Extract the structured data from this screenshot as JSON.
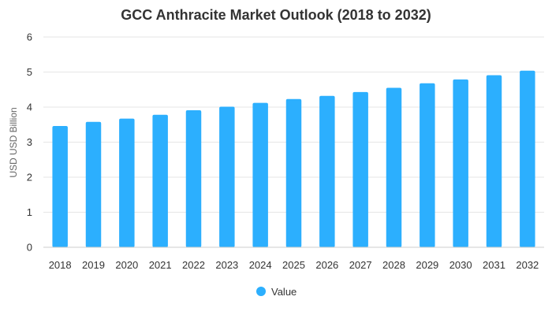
{
  "chart_data": {
    "type": "bar",
    "title": "GCC Anthracite Market Outlook (2018 to 2032)",
    "xlabel": "",
    "ylabel": "USD USD Billion",
    "ylim": [
      0,
      6
    ],
    "yticks": [
      0,
      1,
      2,
      3,
      4,
      5,
      6
    ],
    "categories": [
      "2018",
      "2019",
      "2020",
      "2021",
      "2022",
      "2023",
      "2024",
      "2025",
      "2026",
      "2027",
      "2028",
      "2029",
      "2030",
      "2031",
      "2032"
    ],
    "series": [
      {
        "name": "Value",
        "values": [
          3.46,
          3.58,
          3.67,
          3.78,
          3.91,
          4.01,
          4.12,
          4.23,
          4.32,
          4.43,
          4.55,
          4.68,
          4.79,
          4.91,
          5.04
        ],
        "color": "#2caffe"
      }
    ],
    "grid": true,
    "legend": {
      "position": "bottom-center",
      "items": [
        "Value"
      ]
    }
  }
}
